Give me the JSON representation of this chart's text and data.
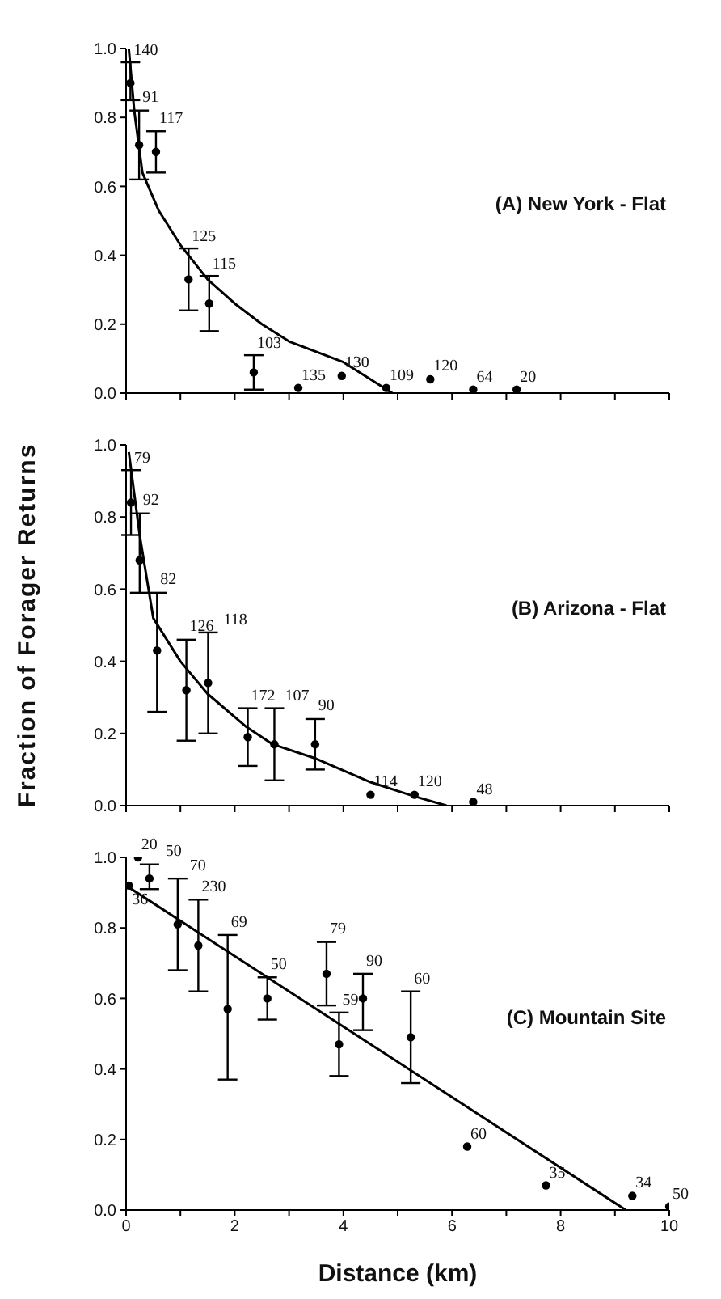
{
  "chart_data": [
    {
      "type": "scatter",
      "xlim": [
        0,
        10
      ],
      "xticks": [
        0,
        1,
        2,
        3,
        4,
        5,
        6,
        7,
        8,
        9,
        10
      ],
      "ylim": [
        0,
        1
      ],
      "yticks": [
        {
          "value": 0,
          "label": "0.0"
        },
        {
          "value": 0.2,
          "label": "0.2"
        },
        {
          "value": 0.4,
          "label": "0.4"
        },
        {
          "value": 0.6,
          "label": "0.6"
        },
        {
          "value": 0.8,
          "label": "0.8"
        },
        {
          "value": 1,
          "label": "1.0"
        }
      ],
      "tick_labels": "y",
      "annotations": [
        "(A) New York - Flat",
        {
          "text": "140",
          "x": 0.08,
          "y": 0.96
        },
        {
          "text": "91",
          "x": 0.24,
          "y": 0.82
        },
        {
          "text": "117",
          "x": 0.55,
          "y": 0.76
        },
        {
          "text": "125",
          "x": 1.15,
          "y": 0.42
        },
        {
          "text": "115",
          "x": 1.53,
          "y": 0.34
        },
        {
          "text": "103",
          "x": 2.35,
          "y": 0.11
        },
        {
          "text": "135",
          "x": 3.17,
          "y": 0.015
        },
        {
          "text": "130",
          "x": 3.97,
          "y": 0.05
        },
        {
          "text": "109",
          "x": 4.79,
          "y": 0.015
        },
        {
          "text": "120",
          "x": 5.6,
          "y": 0.04
        },
        {
          "text": "64",
          "x": 6.39,
          "y": 0.01
        },
        {
          "text": "20",
          "x": 7.19,
          "y": 0.01
        }
      ],
      "series": [
        {
          "color": "#000000",
          "marker": "circle",
          "x": [
            0.08,
            0.24,
            0.55,
            1.15,
            1.53,
            2.35,
            3.17,
            3.97,
            4.79,
            5.6,
            6.39,
            7.19
          ],
          "values": [
            0.9,
            0.72,
            0.7,
            0.33,
            0.26,
            0.06,
            0.015,
            0.05,
            0.015,
            0.04,
            0.01,
            0.01
          ],
          "errors": [
            [
              0.85,
              0.96
            ],
            [
              0.62,
              0.82
            ],
            [
              0.64,
              0.76
            ],
            [
              0.24,
              0.42
            ],
            [
              0.18,
              0.34
            ],
            [
              0.01,
              0.11
            ],
            null,
            null,
            null,
            null,
            null,
            null
          ]
        },
        {
          "type": "line",
          "color": "#000000",
          "marker": "none",
          "x": [
            0.05,
            0.15,
            0.3,
            0.6,
            1.0,
            1.5,
            2.0,
            2.5,
            3.0,
            3.5,
            4.0,
            4.5,
            4.9
          ],
          "values": [
            1.0,
            0.82,
            0.64,
            0.53,
            0.43,
            0.33,
            0.26,
            0.2,
            0.15,
            0.12,
            0.09,
            0.04,
            0.0
          ]
        }
      ]
    },
    {
      "type": "scatter",
      "ylabel": "Fraction of Forager Returns",
      "xlim": [
        0,
        10
      ],
      "xticks": [
        0,
        1,
        2,
        3,
        4,
        5,
        6,
        7,
        8,
        9,
        10
      ],
      "ylim": [
        0,
        1
      ],
      "yticks": [
        {
          "value": 0,
          "label": "0.0"
        },
        {
          "value": 0.2,
          "label": "0.2"
        },
        {
          "value": 0.4,
          "label": "0.4"
        },
        {
          "value": 0.6,
          "label": "0.6"
        },
        {
          "value": 0.8,
          "label": "0.8"
        },
        {
          "value": 1,
          "label": "1.0"
        }
      ],
      "tick_labels": "y",
      "annotations": [
        "(B) Arizona - Flat",
        {
          "text": "79",
          "x": 0.09,
          "y": 0.93
        },
        {
          "text": "92",
          "x": 0.25,
          "y": 0.81
        },
        {
          "text": "82",
          "x": 0.57,
          "y": 0.59
        },
        {
          "text": "126",
          "x": 1.11,
          "y": 0.46
        },
        {
          "text": "118",
          "x": 1.51,
          "y": 0.48
        },
        {
          "text": "172",
          "x": 2.24,
          "y": 0.27
        },
        {
          "text": "107",
          "x": 2.73,
          "y": 0.27
        },
        {
          "text": "90",
          "x": 3.48,
          "y": 0.24
        },
        {
          "text": "114",
          "x": 4.5,
          "y": 0.03
        },
        {
          "text": "120",
          "x": 5.31,
          "y": 0.03
        },
        {
          "text": "48",
          "x": 6.39,
          "y": 0.01
        }
      ],
      "series": [
        {
          "color": "#000000",
          "marker": "circle",
          "x": [
            0.09,
            0.25,
            0.57,
            1.11,
            1.51,
            2.24,
            2.73,
            3.48,
            4.5,
            5.31,
            6.39
          ],
          "values": [
            0.84,
            0.68,
            0.43,
            0.32,
            0.34,
            0.19,
            0.17,
            0.17,
            0.03,
            0.03,
            0.01
          ],
          "errors": [
            [
              0.75,
              0.93
            ],
            [
              0.59,
              0.81
            ],
            [
              0.26,
              0.59
            ],
            [
              0.18,
              0.46
            ],
            [
              0.2,
              0.48
            ],
            [
              0.11,
              0.27
            ],
            [
              0.07,
              0.27
            ],
            [
              0.1,
              0.24
            ],
            null,
            null,
            null
          ]
        },
        {
          "type": "line",
          "color": "#000000",
          "marker": "none",
          "x": [
            0.05,
            0.25,
            0.5,
            1.0,
            1.5,
            2.2,
            2.7,
            3.5,
            4.5,
            5.3,
            5.9
          ],
          "values": [
            0.98,
            0.75,
            0.52,
            0.4,
            0.31,
            0.22,
            0.17,
            0.13,
            0.065,
            0.026,
            0.0
          ]
        }
      ]
    },
    {
      "type": "scatter",
      "xlabel": "Distance  (km)",
      "xlim": [
        0,
        10
      ],
      "xticks": [
        {
          "value": 0,
          "label": "0"
        },
        {
          "value": 1,
          "label": null
        },
        {
          "value": 2,
          "label": "2"
        },
        {
          "value": 3,
          "label": null
        },
        {
          "value": 4,
          "label": "4"
        },
        {
          "value": 5,
          "label": null
        },
        {
          "value": 6,
          "label": "6"
        },
        {
          "value": 7,
          "label": null
        },
        {
          "value": 8,
          "label": "8"
        },
        {
          "value": 9,
          "label": null
        },
        {
          "value": 10,
          "label": "10"
        }
      ],
      "ylim": [
        0,
        1
      ],
      "yticks": [
        {
          "value": 0,
          "label": "0.0"
        },
        {
          "value": 0.2,
          "label": "0.2"
        },
        {
          "value": 0.4,
          "label": "0.4"
        },
        {
          "value": 0.6,
          "label": "0.6"
        },
        {
          "value": 0.8,
          "label": "0.8"
        },
        {
          "value": 1,
          "label": "1.0"
        }
      ],
      "annotations": [
        "(C) Mountain Site",
        {
          "text": "36",
          "x": 0.05,
          "y": 0.92
        },
        {
          "text": "20",
          "x": 0.22,
          "y": 1.0
        },
        {
          "text": "50",
          "x": 0.43,
          "y": 0.98
        },
        {
          "text": "70",
          "x": 0.95,
          "y": 0.94
        },
        {
          "text": "230",
          "x": 1.33,
          "y": 0.88
        },
        {
          "text": "69",
          "x": 1.87,
          "y": 0.78
        },
        {
          "text": "50",
          "x": 2.6,
          "y": 0.66
        },
        {
          "text": "79",
          "x": 3.69,
          "y": 0.76
        },
        {
          "text": "59",
          "x": 3.92,
          "y": 0.56
        },
        {
          "text": "90",
          "x": 4.36,
          "y": 0.67
        },
        {
          "text": "60",
          "x": 5.24,
          "y": 0.62
        },
        {
          "text": "60",
          "x": 6.28,
          "y": 0.18
        },
        {
          "text": "35",
          "x": 7.73,
          "y": 0.07
        },
        {
          "text": "34",
          "x": 9.32,
          "y": 0.04
        },
        {
          "text": "50",
          "x": 10.0,
          "y": 0.01
        }
      ],
      "series": [
        {
          "color": "#000000",
          "marker": "circle",
          "x": [
            0.05,
            0.22,
            0.43,
            0.95,
            1.33,
            1.87,
            2.6,
            3.69,
            3.92,
            4.36,
            5.24,
            6.28,
            7.73,
            9.32,
            10.0
          ],
          "values": [
            0.92,
            1.0,
            0.94,
            0.81,
            0.75,
            0.57,
            0.6,
            0.67,
            0.47,
            0.6,
            0.49,
            0.18,
            0.07,
            0.04,
            0.01
          ],
          "errors": [
            null,
            null,
            [
              0.91,
              0.98
            ],
            [
              0.68,
              0.94
            ],
            [
              0.62,
              0.88
            ],
            [
              0.37,
              0.78
            ],
            [
              0.54,
              0.66
            ],
            [
              0.58,
              0.76
            ],
            [
              0.38,
              0.56
            ],
            [
              0.51,
              0.67
            ],
            [
              0.36,
              0.62
            ],
            null,
            null,
            null,
            null
          ]
        },
        {
          "type": "line",
          "color": "#000000",
          "marker": "none",
          "x": [
            0.0,
            9.2
          ],
          "values": [
            0.92,
            0.0
          ]
        }
      ]
    }
  ]
}
